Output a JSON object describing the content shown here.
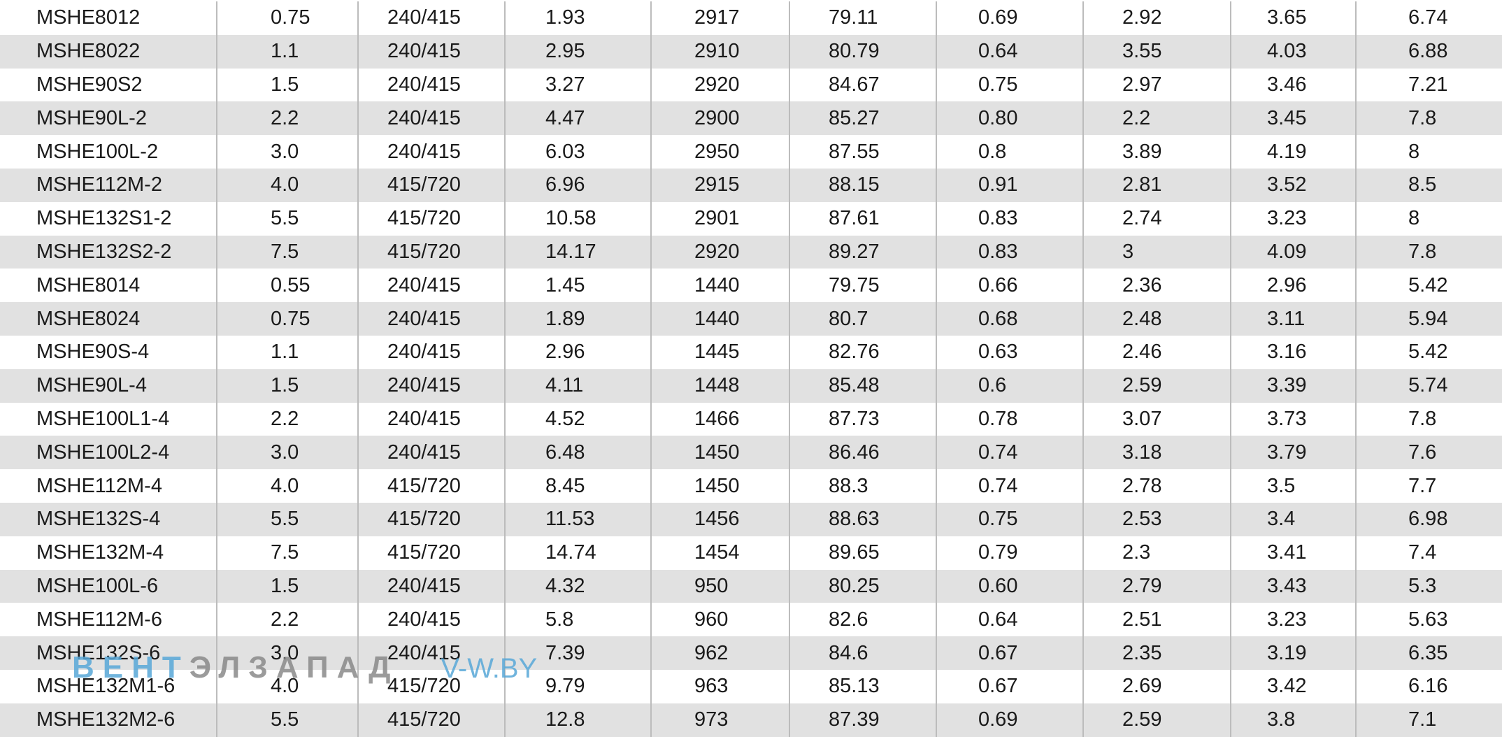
{
  "table": {
    "rows": [
      [
        "MSHE8012",
        "0.75",
        "240/415",
        "1.93",
        "2917",
        "79.11",
        "0.69",
        "2.92",
        "3.65",
        "6.74"
      ],
      [
        "MSHE8022",
        "1.1",
        "240/415",
        "2.95",
        "2910",
        "80.79",
        "0.64",
        "3.55",
        "4.03",
        "6.88"
      ],
      [
        "MSHE90S2",
        "1.5",
        "240/415",
        "3.27",
        "2920",
        "84.67",
        "0.75",
        "2.97",
        "3.46",
        "7.21"
      ],
      [
        "MSHE90L-2",
        "2.2",
        "240/415",
        "4.47",
        "2900",
        "85.27",
        "0.80",
        "2.2",
        "3.45",
        "7.8"
      ],
      [
        "MSHE100L-2",
        "3.0",
        "240/415",
        "6.03",
        "2950",
        "87.55",
        "0.8",
        "3.89",
        "4.19",
        "8"
      ],
      [
        "MSHE112M-2",
        "4.0",
        "415/720",
        "6.96",
        "2915",
        "88.15",
        "0.91",
        "2.81",
        "3.52",
        "8.5"
      ],
      [
        "MSHE132S1-2",
        "5.5",
        "415/720",
        "10.58",
        "2901",
        "87.61",
        "0.83",
        "2.74",
        "3.23",
        "8"
      ],
      [
        "MSHE132S2-2",
        "7.5",
        "415/720",
        "14.17",
        "2920",
        "89.27",
        "0.83",
        "3",
        "4.09",
        "7.8"
      ],
      [
        "MSHE8014",
        "0.55",
        "240/415",
        "1.45",
        "1440",
        "79.75",
        "0.66",
        "2.36",
        "2.96",
        "5.42"
      ],
      [
        "MSHE8024",
        "0.75",
        "240/415",
        "1.89",
        "1440",
        "80.7",
        "0.68",
        "2.48",
        "3.11",
        "5.94"
      ],
      [
        "MSHE90S-4",
        "1.1",
        "240/415",
        "2.96",
        "1445",
        "82.76",
        "0.63",
        "2.46",
        "3.16",
        "5.42"
      ],
      [
        "MSHE90L-4",
        "1.5",
        "240/415",
        "4.11",
        "1448",
        "85.48",
        "0.6",
        "2.59",
        "3.39",
        "5.74"
      ],
      [
        "MSHE100L1-4",
        "2.2",
        "240/415",
        "4.52",
        "1466",
        "87.73",
        "0.78",
        "3.07",
        "3.73",
        "7.8"
      ],
      [
        "MSHE100L2-4",
        "3.0",
        "240/415",
        "6.48",
        "1450",
        "86.46",
        "0.74",
        "3.18",
        "3.79",
        "7.6"
      ],
      [
        "MSHE112M-4",
        "4.0",
        "415/720",
        "8.45",
        "1450",
        "88.3",
        "0.74",
        "2.78",
        "3.5",
        "7.7"
      ],
      [
        "MSHE132S-4",
        "5.5",
        "415/720",
        "11.53",
        "1456",
        "88.63",
        "0.75",
        "2.53",
        "3.4",
        "6.98"
      ],
      [
        "MSHE132M-4",
        "7.5",
        "415/720",
        "14.74",
        "1454",
        "89.65",
        "0.79",
        "2.3",
        "3.41",
        "7.4"
      ],
      [
        "MSHE100L-6",
        "1.5",
        "240/415",
        "4.32",
        "950",
        "80.25",
        "0.60",
        "2.79",
        "3.43",
        "5.3"
      ],
      [
        "MSHE112M-6",
        "2.2",
        "240/415",
        "5.8",
        "960",
        "82.6",
        "0.64",
        "2.51",
        "3.23",
        "5.63"
      ],
      [
        "MSHE132S-6",
        "3.0",
        "240/415",
        "7.39",
        "962",
        "84.6",
        "0.67",
        "2.35",
        "3.19",
        "6.35"
      ],
      [
        "MSHE132M1-6",
        "4.0",
        "415/720",
        "9.79",
        "963",
        "85.13",
        "0.67",
        "2.69",
        "3.42",
        "6.16"
      ],
      [
        "MSHE132M2-6",
        "5.5",
        "415/720",
        "12.8",
        "973",
        "87.39",
        "0.69",
        "2.59",
        "3.8",
        "7.1"
      ]
    ]
  },
  "watermark": {
    "brand_a": "ВЕНТ",
    "brand_b": "ЭЛЗАПАД",
    "site": "V-W.BY"
  }
}
